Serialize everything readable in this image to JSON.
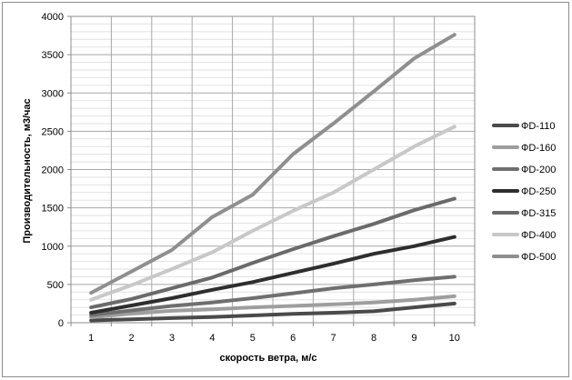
{
  "chart_data": {
    "type": "line",
    "xlabel": "скорость ветра, м/с",
    "ylabel": "Производительность, м3/час",
    "x": [
      1,
      2,
      3,
      4,
      5,
      6,
      7,
      8,
      9,
      10
    ],
    "ylim": [
      0,
      4000
    ],
    "yticks": [
      0,
      500,
      1000,
      1500,
      2000,
      2500,
      3000,
      3500,
      4000
    ],
    "grid": true,
    "legend_position": "right",
    "series": [
      {
        "name": "ФD-110",
        "color": "#4a4a4a",
        "values": [
          30,
          45,
          60,
          75,
          95,
          115,
          130,
          150,
          200,
          250
        ]
      },
      {
        "name": "ФD-160",
        "color": "#9e9e9e",
        "values": [
          70,
          120,
          155,
          175,
          200,
          220,
          240,
          265,
          300,
          345
        ]
      },
      {
        "name": "ФD-200",
        "color": "#6f6f6f",
        "values": [
          100,
          160,
          220,
          265,
          320,
          385,
          450,
          500,
          555,
          600
        ]
      },
      {
        "name": "ФD-250",
        "color": "#2e2e2e",
        "values": [
          130,
          225,
          320,
          430,
          530,
          650,
          770,
          900,
          1000,
          1120
        ]
      },
      {
        "name": "ФD-315",
        "color": "#6a6a6a",
        "values": [
          200,
          310,
          450,
          590,
          780,
          960,
          1130,
          1290,
          1470,
          1620
        ]
      },
      {
        "name": "ФD-400",
        "color": "#c8c8c8",
        "values": [
          300,
          490,
          700,
          920,
          1200,
          1460,
          1700,
          2000,
          2300,
          2560
        ]
      },
      {
        "name": "ФD-500",
        "color": "#8f8f8f",
        "values": [
          390,
          670,
          950,
          1380,
          1670,
          2200,
          2600,
          3020,
          3450,
          3760
        ]
      }
    ]
  }
}
